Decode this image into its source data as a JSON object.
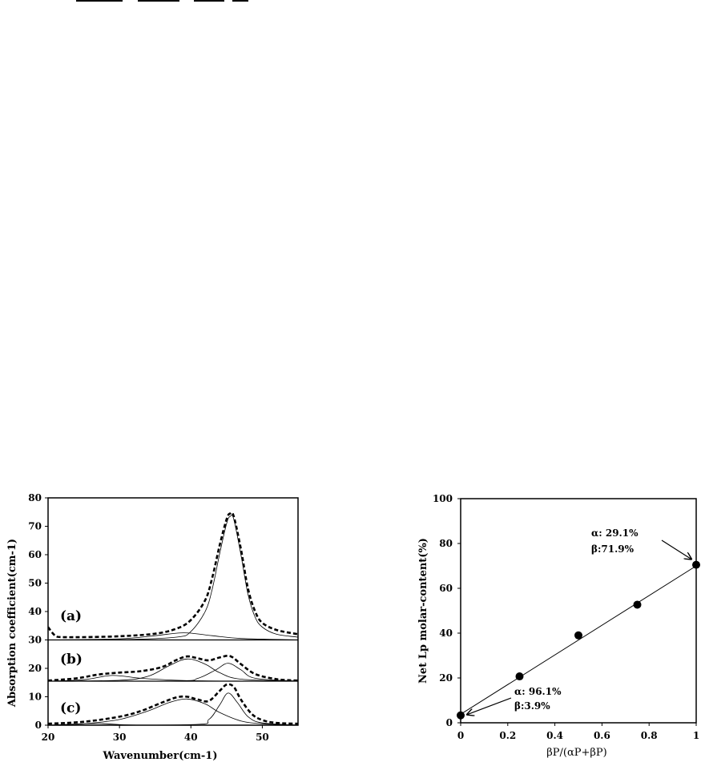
{
  "chart_data": [
    {
      "type": "line",
      "xlabel": "Wavenumber(cm-1)",
      "ylabel": "Absorption coefficient(cm-1)",
      "xlim": [
        20,
        55
      ],
      "ylim": [
        0,
        80
      ],
      "x_ticks": [
        "20",
        "30",
        "40",
        "50"
      ],
      "y_ticks": [
        "0",
        "10",
        "20",
        "30",
        "40",
        "50",
        "60",
        "70",
        "80"
      ],
      "grid": false,
      "panel_labels": [
        "(a)",
        "(b)",
        "(c)"
      ],
      "panel_baselines": [
        30,
        15.5,
        0
      ],
      "series": [
        {
          "panel": "(a)",
          "style": "dashed-bold",
          "x": [
            20,
            21,
            22,
            25,
            30,
            35,
            38,
            40,
            42,
            43,
            44,
            45,
            45.5,
            46,
            47,
            48,
            49,
            50,
            52,
            55
          ],
          "values": [
            34.5,
            31.5,
            31,
            31,
            31.3,
            32.2,
            34,
            37,
            44,
            52,
            63,
            72.5,
            74.5,
            73.5,
            62,
            48,
            40,
            36,
            33.5,
            32
          ]
        },
        {
          "panel": "(a)",
          "style": "thin",
          "x": [
            20,
            30,
            38,
            40,
            42,
            43,
            44,
            45,
            45.5,
            46,
            47,
            48,
            49,
            50,
            52,
            55
          ],
          "values": [
            30,
            30.1,
            31,
            33,
            40,
            48,
            60,
            71,
            73.5,
            72.5,
            60,
            46,
            38,
            34.5,
            32,
            31
          ]
        },
        {
          "panel": "(a)",
          "style": "thin",
          "x": [
            20,
            30,
            35,
            39,
            43,
            47,
            55
          ],
          "values": [
            30,
            30.4,
            31.5,
            32.5,
            31.5,
            30.5,
            30
          ]
        },
        {
          "panel": "(b)",
          "style": "dashed-bold",
          "x": [
            20,
            24,
            27,
            30,
            33,
            36,
            38,
            39.5,
            41,
            42.5,
            44,
            45.5,
            47,
            49,
            52,
            55
          ],
          "values": [
            15.7,
            16.5,
            17.8,
            18.5,
            19,
            20.5,
            23,
            24.2,
            23.5,
            22.8,
            23.8,
            24.3,
            21.5,
            18,
            16.2,
            15.7
          ]
        },
        {
          "panel": "(b)",
          "style": "thin",
          "x": [
            20,
            25,
            29,
            33,
            38,
            45,
            55
          ],
          "values": [
            15.5,
            16,
            17.5,
            16.5,
            15.8,
            15.5,
            15.5
          ]
        },
        {
          "panel": "(b)",
          "style": "thin",
          "x": [
            20,
            30,
            34,
            37,
            39.5,
            42,
            44,
            47,
            55
          ],
          "values": [
            15.5,
            15.8,
            17.2,
            21,
            23.3,
            21.5,
            18.5,
            16.2,
            15.5
          ]
        },
        {
          "panel": "(b)",
          "style": "thin",
          "x": [
            20,
            38,
            41,
            43.5,
            45.2,
            47,
            49,
            55
          ],
          "values": [
            15.5,
            15.6,
            16.5,
            19.5,
            21.8,
            19.5,
            16.5,
            15.5
          ]
        },
        {
          "panel": "(c)",
          "style": "dashed-bold",
          "x": [
            20,
            25,
            30,
            33,
            36,
            38,
            39.5,
            41,
            42.5,
            44,
            45,
            46,
            47,
            48.5,
            50,
            52,
            55
          ],
          "values": [
            0.5,
            1.2,
            3,
            5,
            8,
            9.8,
            10,
            9,
            8.5,
            12,
            14.3,
            13.5,
            9,
            4,
            1.8,
            0.8,
            0.5
          ]
        },
        {
          "panel": "(c)",
          "style": "thin",
          "x": [
            20,
            25,
            30,
            34,
            37,
            39.5,
            42,
            44,
            47,
            50,
            55
          ],
          "values": [
            0,
            0.5,
            2,
            5,
            8,
            9.2,
            7.5,
            4.5,
            1.5,
            0.5,
            0
          ]
        },
        {
          "panel": "(c)",
          "style": "thin",
          "x": [
            20,
            40,
            42.5,
            44,
            45.2,
            46.5,
            48,
            50,
            55
          ],
          "values": [
            0,
            0.2,
            2,
            7,
            11.3,
            8,
            3,
            0.8,
            0
          ]
        },
        {
          "panel": "(c)",
          "style": "thin",
          "x": [
            20,
            27,
            33,
            55
          ],
          "values": [
            0,
            0.6,
            0,
            0
          ]
        }
      ]
    },
    {
      "type": "scatter",
      "xlabel": "βP/(αP+βP)",
      "ylabel": "Net Lp molar-content(%)",
      "xlim": [
        0,
        1
      ],
      "ylim": [
        0,
        100
      ],
      "x_ticks": [
        "0",
        "0.2",
        "0.4",
        "0.6",
        "0.8",
        "1"
      ],
      "y_ticks": [
        "0",
        "20",
        "40",
        "60",
        "80",
        "100"
      ],
      "grid": false,
      "x": [
        0,
        0.25,
        0.5,
        0.75,
        1
      ],
      "values": [
        3.3,
        20.7,
        39,
        52.7,
        70.5
      ],
      "trendline": {
        "x": [
          0,
          1
        ],
        "values": [
          3.8,
          70
        ]
      },
      "annotations": [
        {
          "lines": [
            "α: 29.1%",
            "β:71.9%"
          ],
          "points_to": [
            1,
            70.5
          ]
        },
        {
          "lines": [
            "α: 96.1%",
            "β:3.9%"
          ],
          "points_to": [
            0,
            3.3
          ]
        }
      ]
    }
  ]
}
